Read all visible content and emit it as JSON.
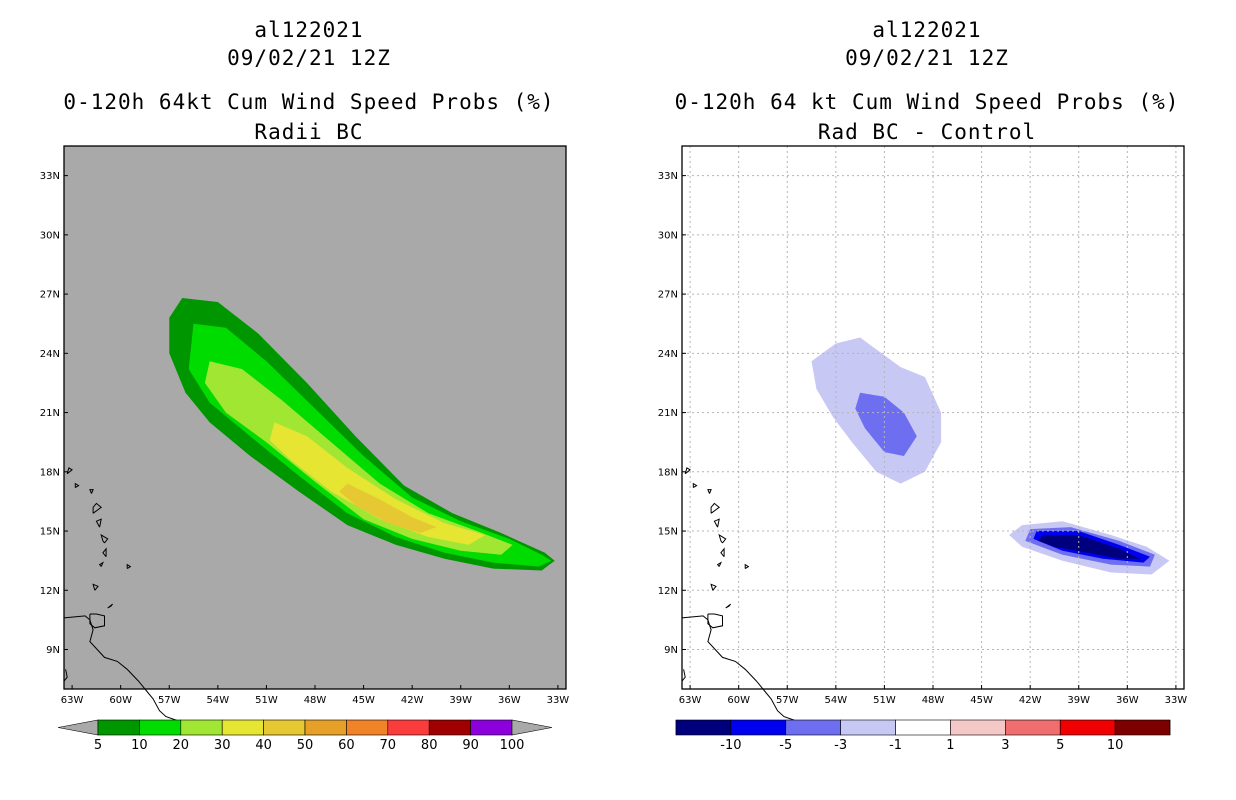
{
  "chart_data": [
    {
      "type": "heatmap",
      "storm_id": "al122021",
      "datetime": "09/02/21 12Z",
      "title": "0-120h 64kt Cum Wind Speed Probs (%)",
      "subtitle": "Radii BC",
      "xlabel": "",
      "ylabel": "",
      "xlim": [
        -63.5,
        -32.5
      ],
      "ylim": [
        7.0,
        34.5
      ],
      "x_ticks": [
        "63W",
        "60W",
        "57W",
        "54W",
        "51W",
        "48W",
        "45W",
        "42W",
        "39W",
        "36W",
        "33W"
      ],
      "y_ticks": [
        "9N",
        "12N",
        "15N",
        "18N",
        "21N",
        "24N",
        "27N",
        "30N",
        "33N"
      ],
      "grid": false,
      "background": "#a9a9a9",
      "colorbar": {
        "labels": [
          "5",
          "10",
          "20",
          "30",
          "40",
          "50",
          "60",
          "70",
          "80",
          "90",
          "100"
        ],
        "colors": [
          "#009600",
          "#00dc00",
          "#a0e632",
          "#e6e632",
          "#e6c832",
          "#e6a028",
          "#f08228",
          "#fa3c3c",
          "#a00000",
          "#8c00dc"
        ]
      },
      "contours": [
        {
          "level": "5-10",
          "color": "#009600",
          "lonlat": [
            [
              -56.2,
              26.8
            ],
            [
              -54.0,
              26.6
            ],
            [
              -51.5,
              25.0
            ],
            [
              -48.5,
              22.5
            ],
            [
              -45.5,
              19.8
            ],
            [
              -42.5,
              17.3
            ],
            [
              -39.5,
              15.9
            ],
            [
              -36.5,
              14.9
            ],
            [
              -33.8,
              13.9
            ],
            [
              -33.2,
              13.5
            ],
            [
              -34.0,
              13.0
            ],
            [
              -37.0,
              13.1
            ],
            [
              -40.0,
              13.6
            ],
            [
              -43.0,
              14.3
            ],
            [
              -46.0,
              15.3
            ],
            [
              -49.0,
              17.0
            ],
            [
              -52.0,
              18.8
            ],
            [
              -54.5,
              20.5
            ],
            [
              -56.0,
              22.0
            ],
            [
              -57.0,
              24.0
            ],
            [
              -57.0,
              25.8
            ]
          ]
        },
        {
          "level": "10-20",
          "color": "#00dc00",
          "lonlat": [
            [
              -55.5,
              25.5
            ],
            [
              -53.5,
              25.3
            ],
            [
              -51.0,
              23.6
            ],
            [
              -48.0,
              21.2
            ],
            [
              -45.0,
              18.8
            ],
            [
              -42.0,
              16.7
            ],
            [
              -39.0,
              15.5
            ],
            [
              -36.0,
              14.6
            ],
            [
              -34.0,
              13.8
            ],
            [
              -33.4,
              13.5
            ],
            [
              -34.2,
              13.2
            ],
            [
              -37.0,
              13.4
            ],
            [
              -40.0,
              13.9
            ],
            [
              -43.0,
              14.7
            ],
            [
              -46.0,
              15.9
            ],
            [
              -49.0,
              17.8
            ],
            [
              -52.0,
              19.8
            ],
            [
              -54.5,
              21.5
            ],
            [
              -55.8,
              23.2
            ]
          ]
        },
        {
          "level": "20-30",
          "color": "#a0e632",
          "lonlat": [
            [
              -54.5,
              23.6
            ],
            [
              -52.5,
              23.2
            ],
            [
              -50.0,
              21.6
            ],
            [
              -47.0,
              19.5
            ],
            [
              -44.0,
              17.4
            ],
            [
              -41.0,
              15.9
            ],
            [
              -38.0,
              15.0
            ],
            [
              -35.8,
              14.3
            ],
            [
              -36.5,
              13.8
            ],
            [
              -39.0,
              14.0
            ],
            [
              -42.0,
              14.6
            ],
            [
              -45.0,
              15.6
            ],
            [
              -48.0,
              17.5
            ],
            [
              -51.0,
              19.5
            ],
            [
              -53.5,
              21.0
            ],
            [
              -54.8,
              22.5
            ]
          ]
        },
        {
          "level": "30-40",
          "color": "#e6e632",
          "lonlat": [
            [
              -50.5,
              20.5
            ],
            [
              -48.5,
              19.8
            ],
            [
              -46.0,
              18.2
            ],
            [
              -43.0,
              16.6
            ],
            [
              -40.0,
              15.4
            ],
            [
              -37.5,
              14.8
            ],
            [
              -38.5,
              14.3
            ],
            [
              -41.0,
              14.7
            ],
            [
              -44.0,
              15.6
            ],
            [
              -47.0,
              17.0
            ],
            [
              -49.5,
              18.6
            ],
            [
              -50.8,
              19.6
            ]
          ]
        },
        {
          "level": "40-50",
          "color": "#e6c832",
          "lonlat": [
            [
              -46.0,
              17.4
            ],
            [
              -44.0,
              16.6
            ],
            [
              -42.0,
              15.7
            ],
            [
              -40.5,
              15.2
            ],
            [
              -41.5,
              14.9
            ],
            [
              -43.5,
              15.4
            ],
            [
              -45.5,
              16.3
            ],
            [
              -46.5,
              17.0
            ]
          ]
        }
      ]
    },
    {
      "type": "heatmap",
      "storm_id": "al122021",
      "datetime": "09/02/21 12Z",
      "title": "0-120h 64 kt Cum Wind Speed Probs (%)",
      "subtitle": "Rad BC - Control",
      "xlabel": "",
      "ylabel": "",
      "xlim": [
        -63.5,
        -32.5
      ],
      "ylim": [
        7.0,
        34.5
      ],
      "x_ticks": [
        "63W",
        "60W",
        "57W",
        "54W",
        "51W",
        "48W",
        "45W",
        "42W",
        "39W",
        "36W",
        "33W"
      ],
      "y_ticks": [
        "9N",
        "12N",
        "15N",
        "18N",
        "21N",
        "24N",
        "27N",
        "30N",
        "33N"
      ],
      "grid": true,
      "background": "#ffffff",
      "colorbar": {
        "labels": [
          "-10",
          "-5",
          "-3",
          "-1",
          "1",
          "3",
          "5",
          "10"
        ],
        "colors": [
          "#00007d",
          "#0000f0",
          "#6e6ef0",
          "#c8c8f5",
          "#ffffff",
          "#f5c8c8",
          "#f06e6e",
          "#f00000",
          "#7d0000"
        ]
      },
      "contours": [
        {
          "level": "-3 to -1",
          "color": "#c8c8f5",
          "lonlat": [
            [
              -55.5,
              23.6
            ],
            [
              -54.0,
              24.5
            ],
            [
              -52.5,
              24.8
            ],
            [
              -51.5,
              24.2
            ],
            [
              -50.0,
              23.3
            ],
            [
              -48.5,
              22.8
            ],
            [
              -47.5,
              21.0
            ],
            [
              -47.5,
              19.5
            ],
            [
              -48.5,
              18.0
            ],
            [
              -50.0,
              17.4
            ],
            [
              -51.5,
              18.0
            ],
            [
              -53.0,
              19.5
            ],
            [
              -54.2,
              20.8
            ],
            [
              -55.2,
              22.2
            ]
          ]
        },
        {
          "level": "-5 to -3",
          "color": "#6e6ef0",
          "lonlat": [
            [
              -52.5,
              22.0
            ],
            [
              -51.0,
              21.8
            ],
            [
              -49.8,
              21.0
            ],
            [
              -49.0,
              19.8
            ],
            [
              -49.8,
              18.8
            ],
            [
              -51.0,
              19.0
            ],
            [
              -52.2,
              20.2
            ],
            [
              -52.8,
              21.2
            ]
          ]
        },
        {
          "level": "-3 to -1",
          "color": "#c8c8f5",
          "lonlat": [
            [
              -42.5,
              15.3
            ],
            [
              -40.0,
              15.5
            ],
            [
              -37.0,
              14.8
            ],
            [
              -34.8,
              14.2
            ],
            [
              -33.4,
              13.5
            ],
            [
              -34.5,
              12.8
            ],
            [
              -37.0,
              12.9
            ],
            [
              -40.0,
              13.5
            ],
            [
              -42.5,
              14.2
            ],
            [
              -43.3,
              14.8
            ]
          ]
        },
        {
          "level": "-5 to -3",
          "color": "#6e6ef0",
          "lonlat": [
            [
              -42.0,
              15.1
            ],
            [
              -39.5,
              15.2
            ],
            [
              -36.5,
              14.5
            ],
            [
              -34.3,
              13.8
            ],
            [
              -34.6,
              13.2
            ],
            [
              -37.0,
              13.3
            ],
            [
              -40.0,
              13.8
            ],
            [
              -42.3,
              14.5
            ]
          ]
        },
        {
          "level": "-10 to -5",
          "color": "#0000f0",
          "lonlat": [
            [
              -41.6,
              15.0
            ],
            [
              -39.0,
              15.0
            ],
            [
              -36.5,
              14.3
            ],
            [
              -34.6,
              13.7
            ],
            [
              -35.0,
              13.4
            ],
            [
              -37.5,
              13.6
            ],
            [
              -40.0,
              14.0
            ],
            [
              -41.8,
              14.6
            ]
          ]
        },
        {
          "level": "< -10",
          "color": "#00007d",
          "lonlat": [
            [
              -41.2,
              14.8
            ],
            [
              -39.0,
              14.8
            ],
            [
              -36.5,
              14.1
            ],
            [
              -35.2,
              13.6
            ],
            [
              -36.5,
              13.6
            ],
            [
              -38.5,
              13.9
            ],
            [
              -40.5,
              14.2
            ],
            [
              -41.5,
              14.5
            ]
          ]
        }
      ]
    }
  ]
}
